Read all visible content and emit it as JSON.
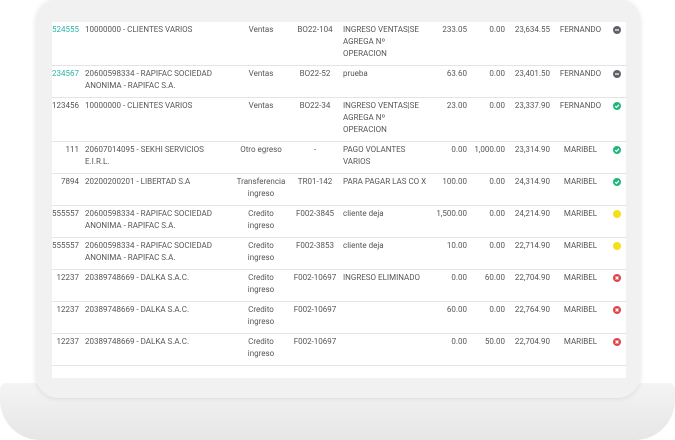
{
  "table": {
    "rows": [
      {
        "id": "524555",
        "id_color": "#2bb3a3",
        "client": "10000000 - CLIENTES VARIOS",
        "type": "Ventas",
        "doc": "BO22-104",
        "description": "INGRESO VENTAS|SE AGREGA Nº OPERACION",
        "debit": "233.05",
        "credit": "0.00",
        "balance": "23,634.55",
        "user": "FERNANDO",
        "status_color": "#5f6368",
        "icon": "minus"
      },
      {
        "id": "234567",
        "id_color": "#2bb3a3",
        "client": "20600598334 - RAPIFAC SOCIEDAD ANONIMA - RAPIFAC S.A.",
        "type": "Ventas",
        "doc": "BO22-52",
        "description": "prueba",
        "debit": "63.60",
        "credit": "0.00",
        "balance": "23,401.50",
        "user": "FERNANDO",
        "status_color": "#5f6368",
        "icon": "minus"
      },
      {
        "id": "123456",
        "client": "10000000 - CLIENTES VARIOS",
        "type": "Ventas",
        "doc": "BO22-34",
        "description": "INGRESO VENTAS|SE AGREGA Nº OPERACION",
        "debit": "23.00",
        "credit": "0.00",
        "balance": "23,337.90",
        "user": "FERNANDO",
        "status_color": "#20b77a",
        "icon": "check"
      },
      {
        "id": "111",
        "client": "20607014095 - SEKHI SERVICIOS E.I.R.L.",
        "type": "Otro egreso",
        "doc": "-",
        "description": "PAGO VOLANTES VARIOS",
        "debit": "0.00",
        "credit": "1,000.00",
        "balance": "23,314.90",
        "user": "MARIBEL",
        "status_color": "#20b77a",
        "icon": "check"
      },
      {
        "id": "7894",
        "client": "20200200201 - LIBERTAD S.A",
        "type": "Transferencia ingreso",
        "doc": "TR01-142",
        "description": "PARA PAGAR LAS CO X",
        "debit": "100.00",
        "credit": "0.00",
        "balance": "24,314.90",
        "user": "MARIBEL",
        "status_color": "#20b77a",
        "icon": "check"
      },
      {
        "id": "555557",
        "client": "20600598334 - RAPIFAC SOCIEDAD ANONIMA - RAPIFAC S.A.",
        "type": "Credito ingreso",
        "doc": "F002-3845",
        "description": "cliente deja",
        "debit": "1,500.00",
        "credit": "0.00",
        "balance": "24,214.90",
        "user": "MARIBEL",
        "status_color": "#f2e01a",
        "icon": "dot"
      },
      {
        "id": "555557",
        "client": "20600598334 - RAPIFAC SOCIEDAD ANONIMA - RAPIFAC S.A.",
        "type": "Credito ingreso",
        "doc": "F002-3853",
        "description": "cliente deja",
        "debit": "10.00",
        "credit": "0.00",
        "balance": "22,714.90",
        "user": "MARIBEL",
        "status_color": "#f2e01a",
        "icon": "dot"
      },
      {
        "id": "12237",
        "client": "20389748669 - DALKA S.A.C.",
        "type": "Credito ingreso",
        "doc": "F002-10697",
        "description": "INGRESO ELIMINADO",
        "debit": "0.00",
        "credit": "60.00",
        "balance": "22,704.90",
        "user": "MARIBEL",
        "status_color": "#e0454f",
        "icon": "x"
      },
      {
        "id": "12237",
        "client": "20389748669 - DALKA S.A.C.",
        "type": "Credito ingreso",
        "doc": "F002-10697",
        "debit": "60.00",
        "credit": "0.00",
        "balance": "22,764.90",
        "user": "MARIBEL",
        "status_color": "#e0454f",
        "icon": "x"
      },
      {
        "id": "12237",
        "client": "20389748669 - DALKA S.A.C.",
        "type": "Credito ingreso",
        "doc": "F002-10697",
        "debit": "0.00",
        "credit": "50.00",
        "balance": "22,704.90",
        "user": "MARIBEL",
        "status_color": "#e0454f",
        "icon": "x"
      }
    ]
  }
}
